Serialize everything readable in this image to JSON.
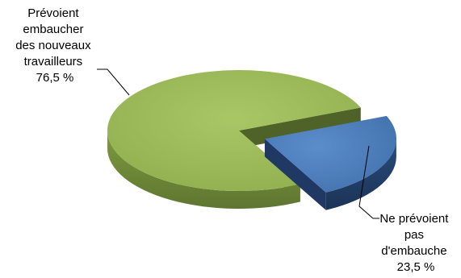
{
  "chart_data": {
    "type": "pie",
    "title": "",
    "slices": [
      {
        "value": 76.5,
        "color": "#9BBB59",
        "dark_color": "#4F6228",
        "label_lines": [
          "Prévoient",
          "embaucher",
          "des nouveaux",
          "travailleurs",
          "76,5 %"
        ]
      },
      {
        "value": 23.5,
        "color": "#4F81BD",
        "dark_color": "#1F3864",
        "label_lines": [
          "Ne prévoient",
          "pas",
          "d'embauche",
          "23,5 %"
        ]
      }
    ]
  }
}
